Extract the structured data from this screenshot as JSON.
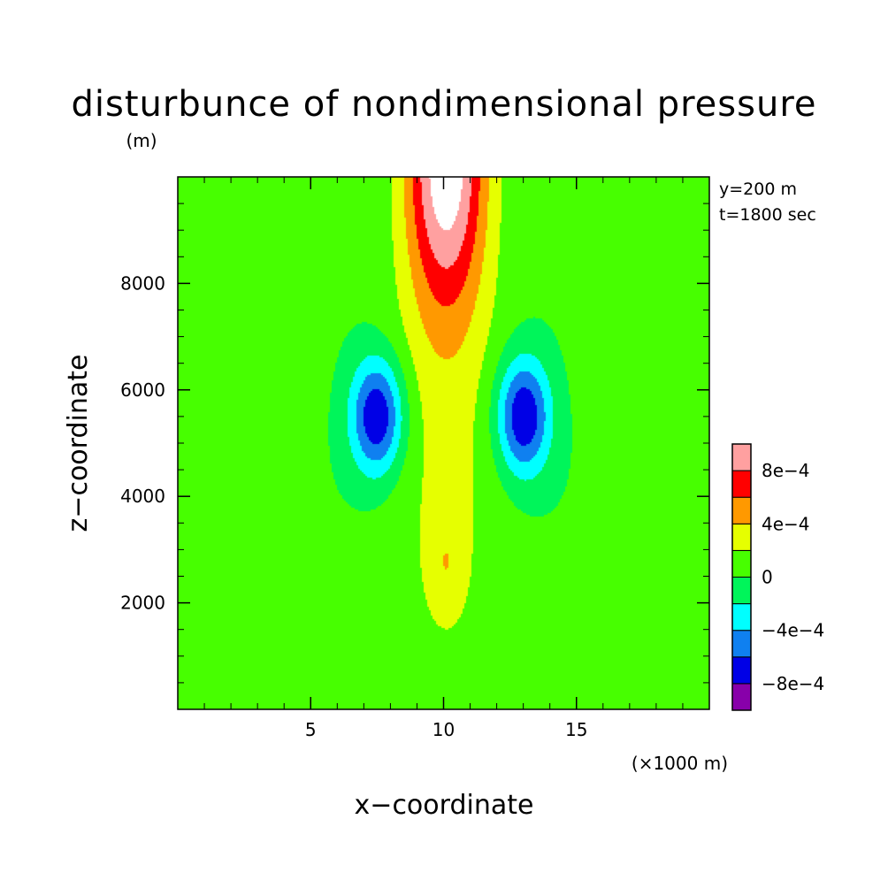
{
  "chart_data": {
    "type": "contour",
    "title": "disturbunce of nondimensional pressure",
    "units": "(m)",
    "xlabel": "x−coordinate",
    "ylabel": "z−coordinate",
    "x_unit": "(×1000 m)",
    "xlim": [
      0,
      20
    ],
    "ylim": [
      0,
      10000
    ],
    "x_ticks": [
      {
        "value": 5,
        "label": "5"
      },
      {
        "value": 10,
        "label": "10"
      },
      {
        "value": 15,
        "label": "15"
      }
    ],
    "y_ticks": [
      {
        "value": 2000,
        "label": "2000"
      },
      {
        "value": 4000,
        "label": "4000"
      },
      {
        "value": 6000,
        "label": "6000"
      },
      {
        "value": 8000,
        "label": "8000"
      }
    ],
    "annotations": [
      "y=200 m",
      "t=1800 sec"
    ],
    "grid": false,
    "legend_position": "right",
    "levels": [
      {
        "lo": -0.0012,
        "hi": -0.0008,
        "color": "#8800AA"
      },
      {
        "lo": -0.0008,
        "hi": -0.0006,
        "color": "#0000E6"
      },
      {
        "lo": -0.0006,
        "hi": -0.0004,
        "color": "#0F80F0"
      },
      {
        "lo": -0.0004,
        "hi": -0.0002,
        "color": "#00FFFF"
      },
      {
        "lo": -0.0002,
        "hi": 0,
        "color": "#00F55A"
      },
      {
        "lo": 0,
        "hi": 0.0002,
        "color": "#47FF00"
      },
      {
        "lo": 0.0002,
        "hi": 0.0004,
        "color": "#E6FF00"
      },
      {
        "lo": 0.0004,
        "hi": 0.0006,
        "color": "#FF9900"
      },
      {
        "lo": 0.0006,
        "hi": 0.0008,
        "color": "#FF0000"
      },
      {
        "lo": 0.0008,
        "hi": 0.001,
        "color": "#FFA0A0"
      },
      {
        "lo": 0.001,
        "hi": 0.0014,
        "color": "#FFFFFF"
      }
    ],
    "colorbar_labels": [
      {
        "value": 0.0008,
        "label": "8e−4"
      },
      {
        "value": 0.0004,
        "label": "4e−4"
      },
      {
        "value": 0,
        "label": "0"
      },
      {
        "value": -0.0004,
        "label": "−4e−4"
      },
      {
        "value": -0.0008,
        "label": "−8e−4"
      }
    ],
    "features": [
      {
        "type": "band",
        "x": 10.1,
        "sx": 2.5,
        "zc": 4800,
        "sz": 5000,
        "amp": 0.00023
      },
      {
        "type": "bump",
        "x": 1.0,
        "z": 6200,
        "sx": 4.0,
        "sz": 1700,
        "amp": 0.0001
      },
      {
        "type": "bump",
        "x": 19.2,
        "z": 6200,
        "sx": 4.0,
        "sz": 1700,
        "amp": 0.0001
      },
      {
        "type": "bump",
        "x": 10.1,
        "z": 2700,
        "sx": 0.7,
        "sz": 1000,
        "amp": 0.00021
      },
      {
        "type": "bump",
        "x": 10.1,
        "z": 10400,
        "sx": 1.5,
        "sz": 2900,
        "amp": 0.00112
      },
      {
        "type": "bump",
        "x": 7.5,
        "z": 5500,
        "sx": 1.0,
        "sz": 1100,
        "amp": -0.00085
      },
      {
        "type": "bump",
        "x": 13.0,
        "z": 5500,
        "sx": 1.0,
        "sz": 1100,
        "amp": -0.00085
      }
    ]
  }
}
